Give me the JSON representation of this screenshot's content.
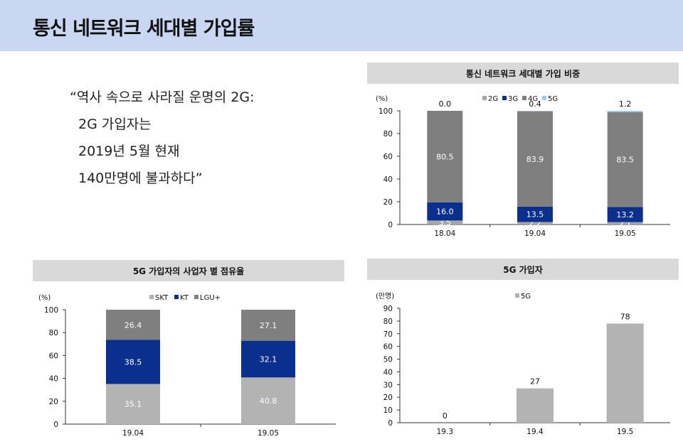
{
  "page": {
    "title": "통신 네트워크 세대별 가입률"
  },
  "quote": {
    "lines": [
      "“역사 속으로 사라질 운명의 2G:",
      "2G 가입자는",
      "2019년 5월 현재",
      "140만명에 불과하다”"
    ]
  },
  "chart_data": [
    {
      "type": "bar",
      "stacked": true,
      "title": "통신 네트워크 세대별 가입 비중",
      "unit_label": "(%)",
      "categories": [
        "18.04",
        "19.04",
        "19.05"
      ],
      "ylim": [
        0,
        100
      ],
      "yticks": [
        0,
        20,
        40,
        60,
        80,
        100
      ],
      "legend_position": "top",
      "series": [
        {
          "name": "2G",
          "values": [
            3.5,
            2.2,
            2.1
          ],
          "labels": [
            "3.5",
            "2.2",
            "2.1"
          ],
          "color": "#a6a6a6",
          "label_color": "#ffffff"
        },
        {
          "name": "3G",
          "values": [
            16.0,
            13.5,
            13.2
          ],
          "labels": [
            "16.0",
            "13.5",
            "13.2"
          ],
          "color": "#0a2f8c",
          "label_color": "#ffffff"
        },
        {
          "name": "4G",
          "values": [
            80.5,
            83.9,
            83.5
          ],
          "labels": [
            "80.5",
            "83.9",
            "83.5"
          ],
          "color": "#7f7f7f",
          "label_color": "#ffffff"
        },
        {
          "name": "5G",
          "values": [
            0.0,
            0.4,
            1.2
          ],
          "labels": [
            "0.0",
            "0.4",
            "1.2"
          ],
          "color": "#9ec8f0",
          "label_color": "#111111",
          "label_above": true
        }
      ]
    },
    {
      "type": "bar",
      "stacked": true,
      "title": "5G 가입자의 사업자 별 점유율",
      "unit_label": "(%)",
      "categories": [
        "19.04",
        "19.05"
      ],
      "ylim": [
        0,
        100
      ],
      "yticks": [
        0,
        20,
        40,
        60,
        80,
        100
      ],
      "legend_position": "top",
      "series": [
        {
          "name": "SKT",
          "values": [
            35.1,
            40.8
          ],
          "labels": [
            "35.1",
            "40.8"
          ],
          "color": "#b3b3b3",
          "label_color": "#ffffff"
        },
        {
          "name": "KT",
          "values": [
            38.5,
            32.1
          ],
          "labels": [
            "38.5",
            "32.1"
          ],
          "color": "#0a2f8c",
          "label_color": "#ffffff"
        },
        {
          "name": "LGU+",
          "values": [
            26.4,
            27.1
          ],
          "labels": [
            "26.4",
            "27.1"
          ],
          "color": "#7f7f7f",
          "label_color": "#ffffff"
        }
      ]
    },
    {
      "type": "bar",
      "stacked": false,
      "title": "5G 가입자",
      "unit_label": "(만명)",
      "categories": [
        "19.3",
        "19.4",
        "19.5"
      ],
      "ylim": [
        0,
        90
      ],
      "yticks": [
        0,
        10,
        20,
        30,
        40,
        50,
        60,
        70,
        80,
        90
      ],
      "legend_position": "top",
      "series": [
        {
          "name": "5G",
          "values": [
            0,
            27,
            78
          ],
          "labels": [
            "0",
            "27",
            "78"
          ],
          "color": "#b3b3b3",
          "label_color": "#111111",
          "label_above": true
        }
      ]
    }
  ]
}
